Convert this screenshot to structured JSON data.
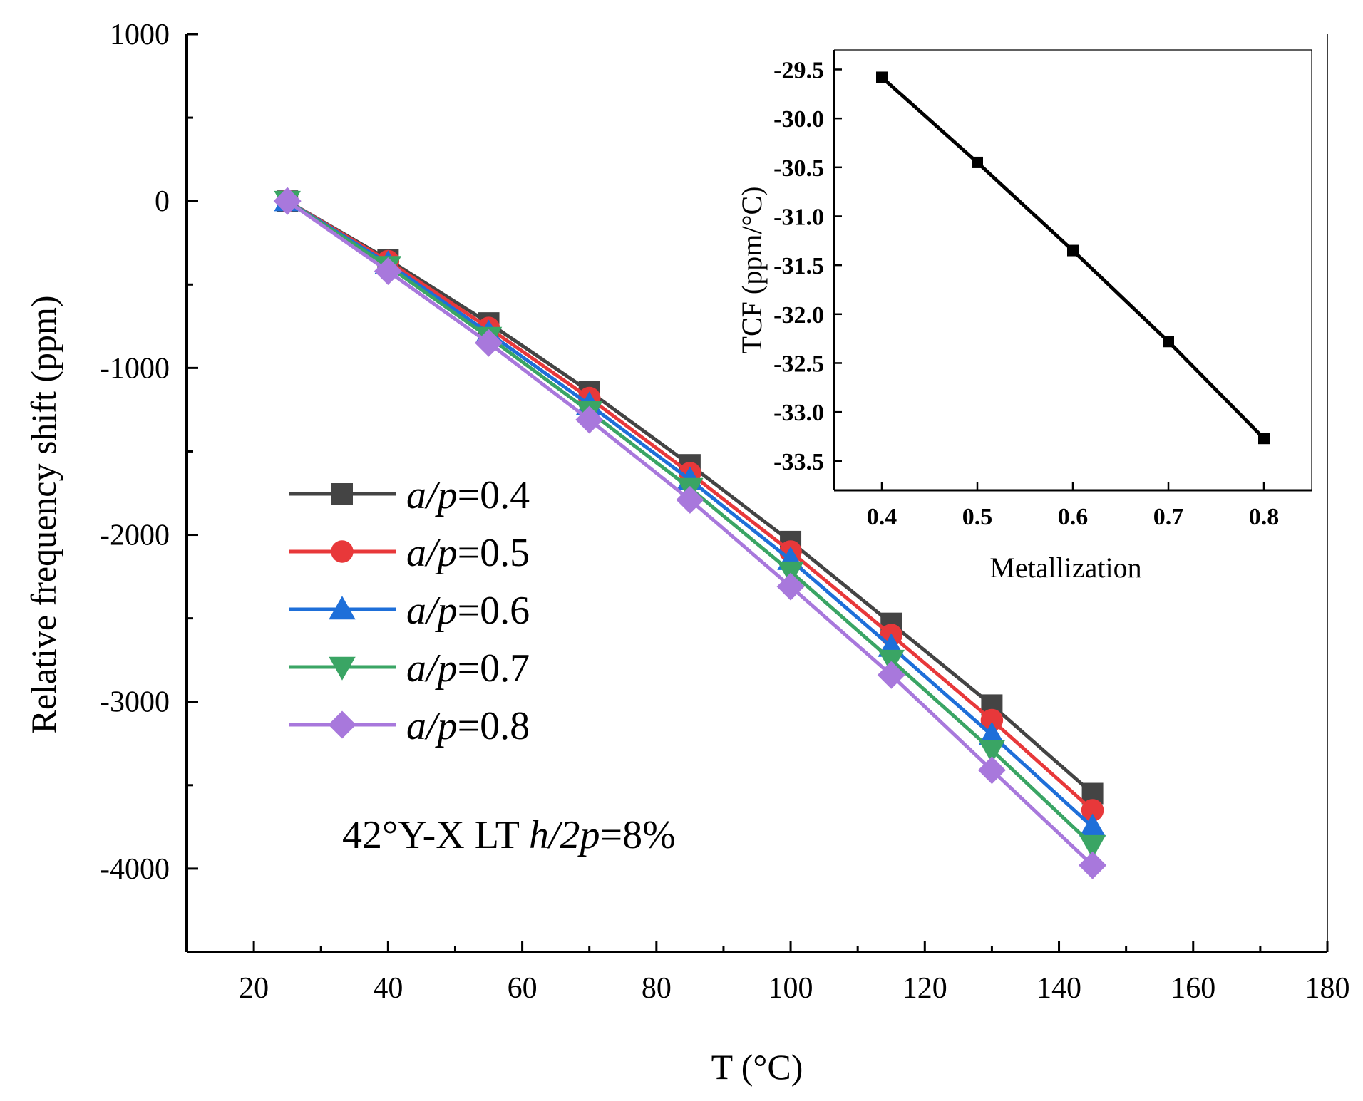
{
  "colors": {
    "series": [
      "#444444",
      "#e8383a",
      "#1e6fd9",
      "#3aa564",
      "#a878dc"
    ],
    "axis": "#000000",
    "inset_line": "#000000"
  },
  "chart_data": [
    {
      "type": "line",
      "title": "",
      "xlabel": "T (°C)",
      "ylabel": "Relative frequency shift (ppm)",
      "xlim": [
        10,
        180
      ],
      "ylim": [
        -4500,
        1000
      ],
      "xticks": [
        20,
        40,
        60,
        80,
        100,
        120,
        140,
        160,
        180
      ],
      "yticks": [
        1000,
        0,
        -1000,
        -2000,
        -3000,
        -4000
      ],
      "x": [
        25,
        40,
        55,
        70,
        85,
        100,
        115,
        130,
        145
      ],
      "series": [
        {
          "name_prefix": "a/p",
          "name_suffix": "=0.4",
          "marker": "square",
          "values": [
            0,
            -350,
            -730,
            -1140,
            -1580,
            -2040,
            -2530,
            -3020,
            -3550
          ]
        },
        {
          "name_prefix": "a/p",
          "name_suffix": "=0.5",
          "marker": "circle",
          "values": [
            0,
            -360,
            -760,
            -1180,
            -1630,
            -2100,
            -2600,
            -3110,
            -3650
          ]
        },
        {
          "name_prefix": "a/p",
          "name_suffix": "=0.6",
          "marker": "triangle-up",
          "values": [
            0,
            -375,
            -790,
            -1220,
            -1670,
            -2150,
            -2670,
            -3200,
            -3750
          ]
        },
        {
          "name_prefix": "a/p",
          "name_suffix": "=0.7",
          "marker": "triangle-down",
          "values": [
            0,
            -390,
            -815,
            -1260,
            -1720,
            -2220,
            -2750,
            -3290,
            -3860
          ]
        },
        {
          "name_prefix": "a/p",
          "name_suffix": "=0.8",
          "marker": "diamond",
          "values": [
            0,
            -420,
            -850,
            -1310,
            -1790,
            -2310,
            -2840,
            -3410,
            -3980
          ]
        }
      ],
      "legend": "middle-left",
      "annotation": {
        "prefix": "42°Y-X LT  ",
        "italic": "h/2p",
        "suffix": "=8%"
      }
    },
    {
      "type": "line",
      "title": "",
      "xlabel": "Metallization",
      "ylabel": "TCF (ppm/°C)",
      "xlim": [
        0.35,
        0.85
      ],
      "ylim": [
        -33.8,
        -29.3
      ],
      "xticks": [
        0.4,
        0.5,
        0.6,
        0.7,
        0.8
      ],
      "xtick_labels": [
        "0.4",
        "0.5",
        "0.6",
        "0.7",
        "0.8"
      ],
      "yticks": [
        -29.5,
        -30.0,
        -30.5,
        -31.0,
        -31.5,
        -32.0,
        -32.5,
        -33.0,
        -33.5
      ],
      "ytick_labels": [
        "-29.5",
        "-30.0",
        "-30.5",
        "-31.0",
        "-31.5",
        "-32.0",
        "-32.5",
        "-33.0",
        "-33.5"
      ],
      "x": [
        0.4,
        0.5,
        0.6,
        0.7,
        0.8
      ],
      "values": [
        -29.58,
        -30.45,
        -31.35,
        -32.28,
        -33.27
      ],
      "marker": "square"
    }
  ]
}
